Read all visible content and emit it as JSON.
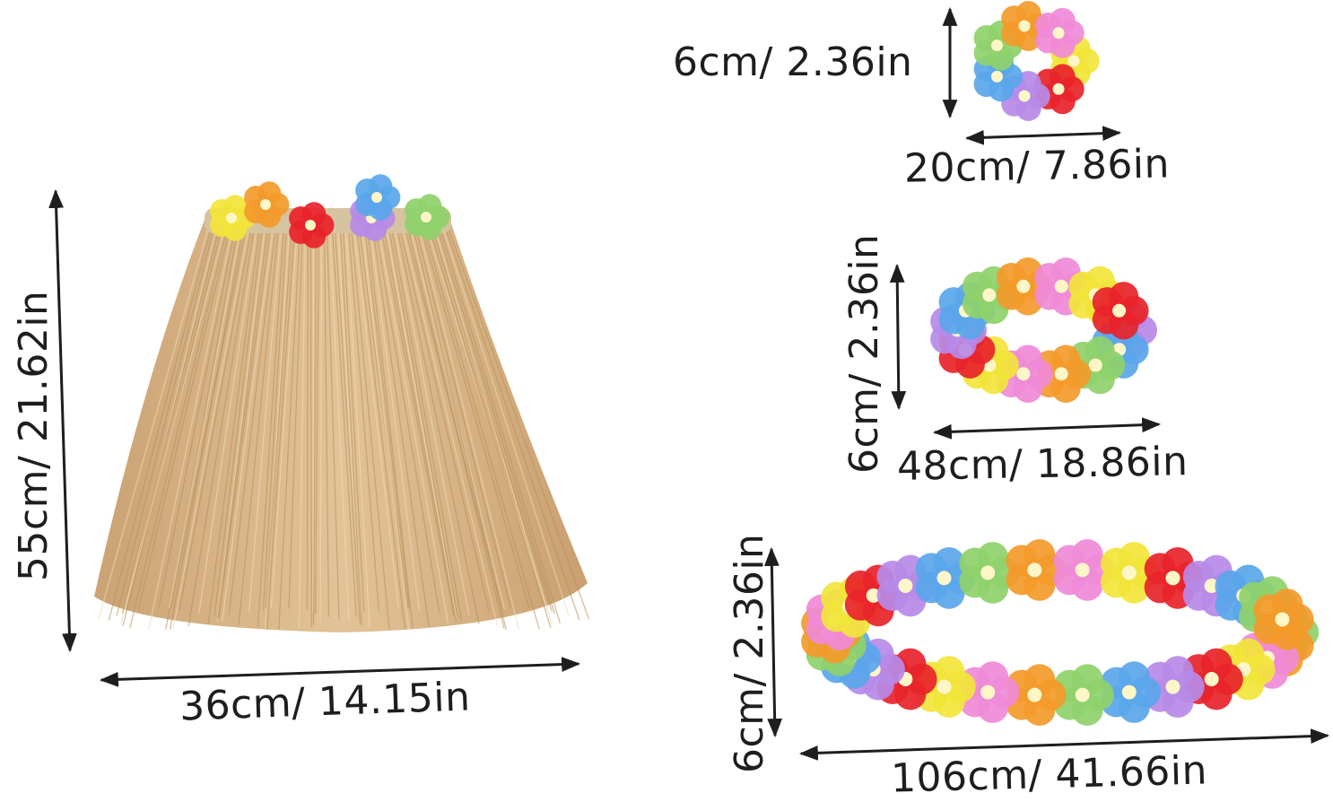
{
  "labels": {
    "bracelet_height": "6cm/ 2.36in",
    "bracelet_width": "20cm/ 7.86in",
    "headband_height": "6cm/ 2.36in",
    "headband_width": "48cm/ 18.86in",
    "necklace_height": "6cm/ 2.36in",
    "necklace_width": "106cm/ 41.66in",
    "skirt_height": "55cm/ 21.62in",
    "skirt_width": "36cm/ 14.15in"
  },
  "colors": {
    "grass": "#d9b88a",
    "grass_dark": "#b8925e",
    "text": "#1e1e1e",
    "flowers": [
      "#f2e53a",
      "#e8232a",
      "#b78ae8",
      "#5aa6ea",
      "#8fd16a",
      "#f39a2a",
      "#f08ad8"
    ]
  }
}
